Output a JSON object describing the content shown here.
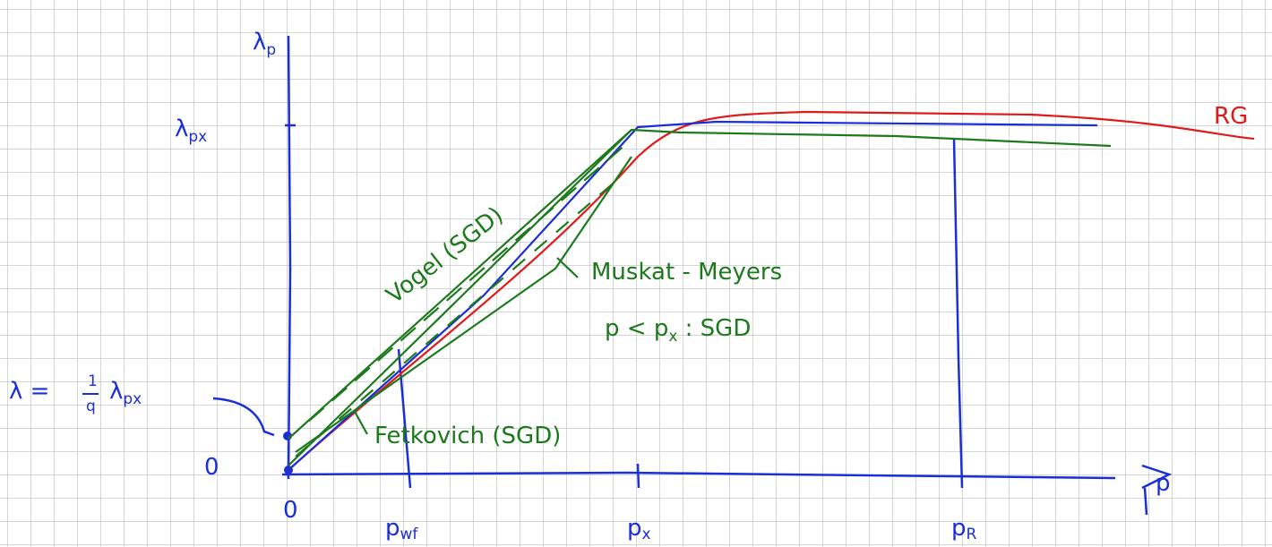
{
  "axes": {
    "y_label": {
      "main": "λ",
      "sub": "p"
    },
    "x_label": "p",
    "y_origin": "0",
    "x_origin": "0"
  },
  "y_marks": {
    "lambda_px": {
      "main": "λ",
      "sub": "px"
    },
    "lambda_q": {
      "lhs": "λ =",
      "num": "1",
      "den": "q",
      "rhs_main": "λ",
      "rhs_sub": "px"
    }
  },
  "x_marks": [
    {
      "main": "p",
      "sub": "wf"
    },
    {
      "main": "p",
      "sub": "x"
    },
    {
      "main": "p",
      "sub": "R"
    }
  ],
  "curves": {
    "rg": "RG",
    "vogel": "Vogel (SGD)",
    "muskat": "Muskat - Meyers",
    "muskat_note": {
      "main": "p < p",
      "sub": "x",
      "rest": " : SGD"
    },
    "fetkovich": "Fetkovich (SGD)"
  }
}
